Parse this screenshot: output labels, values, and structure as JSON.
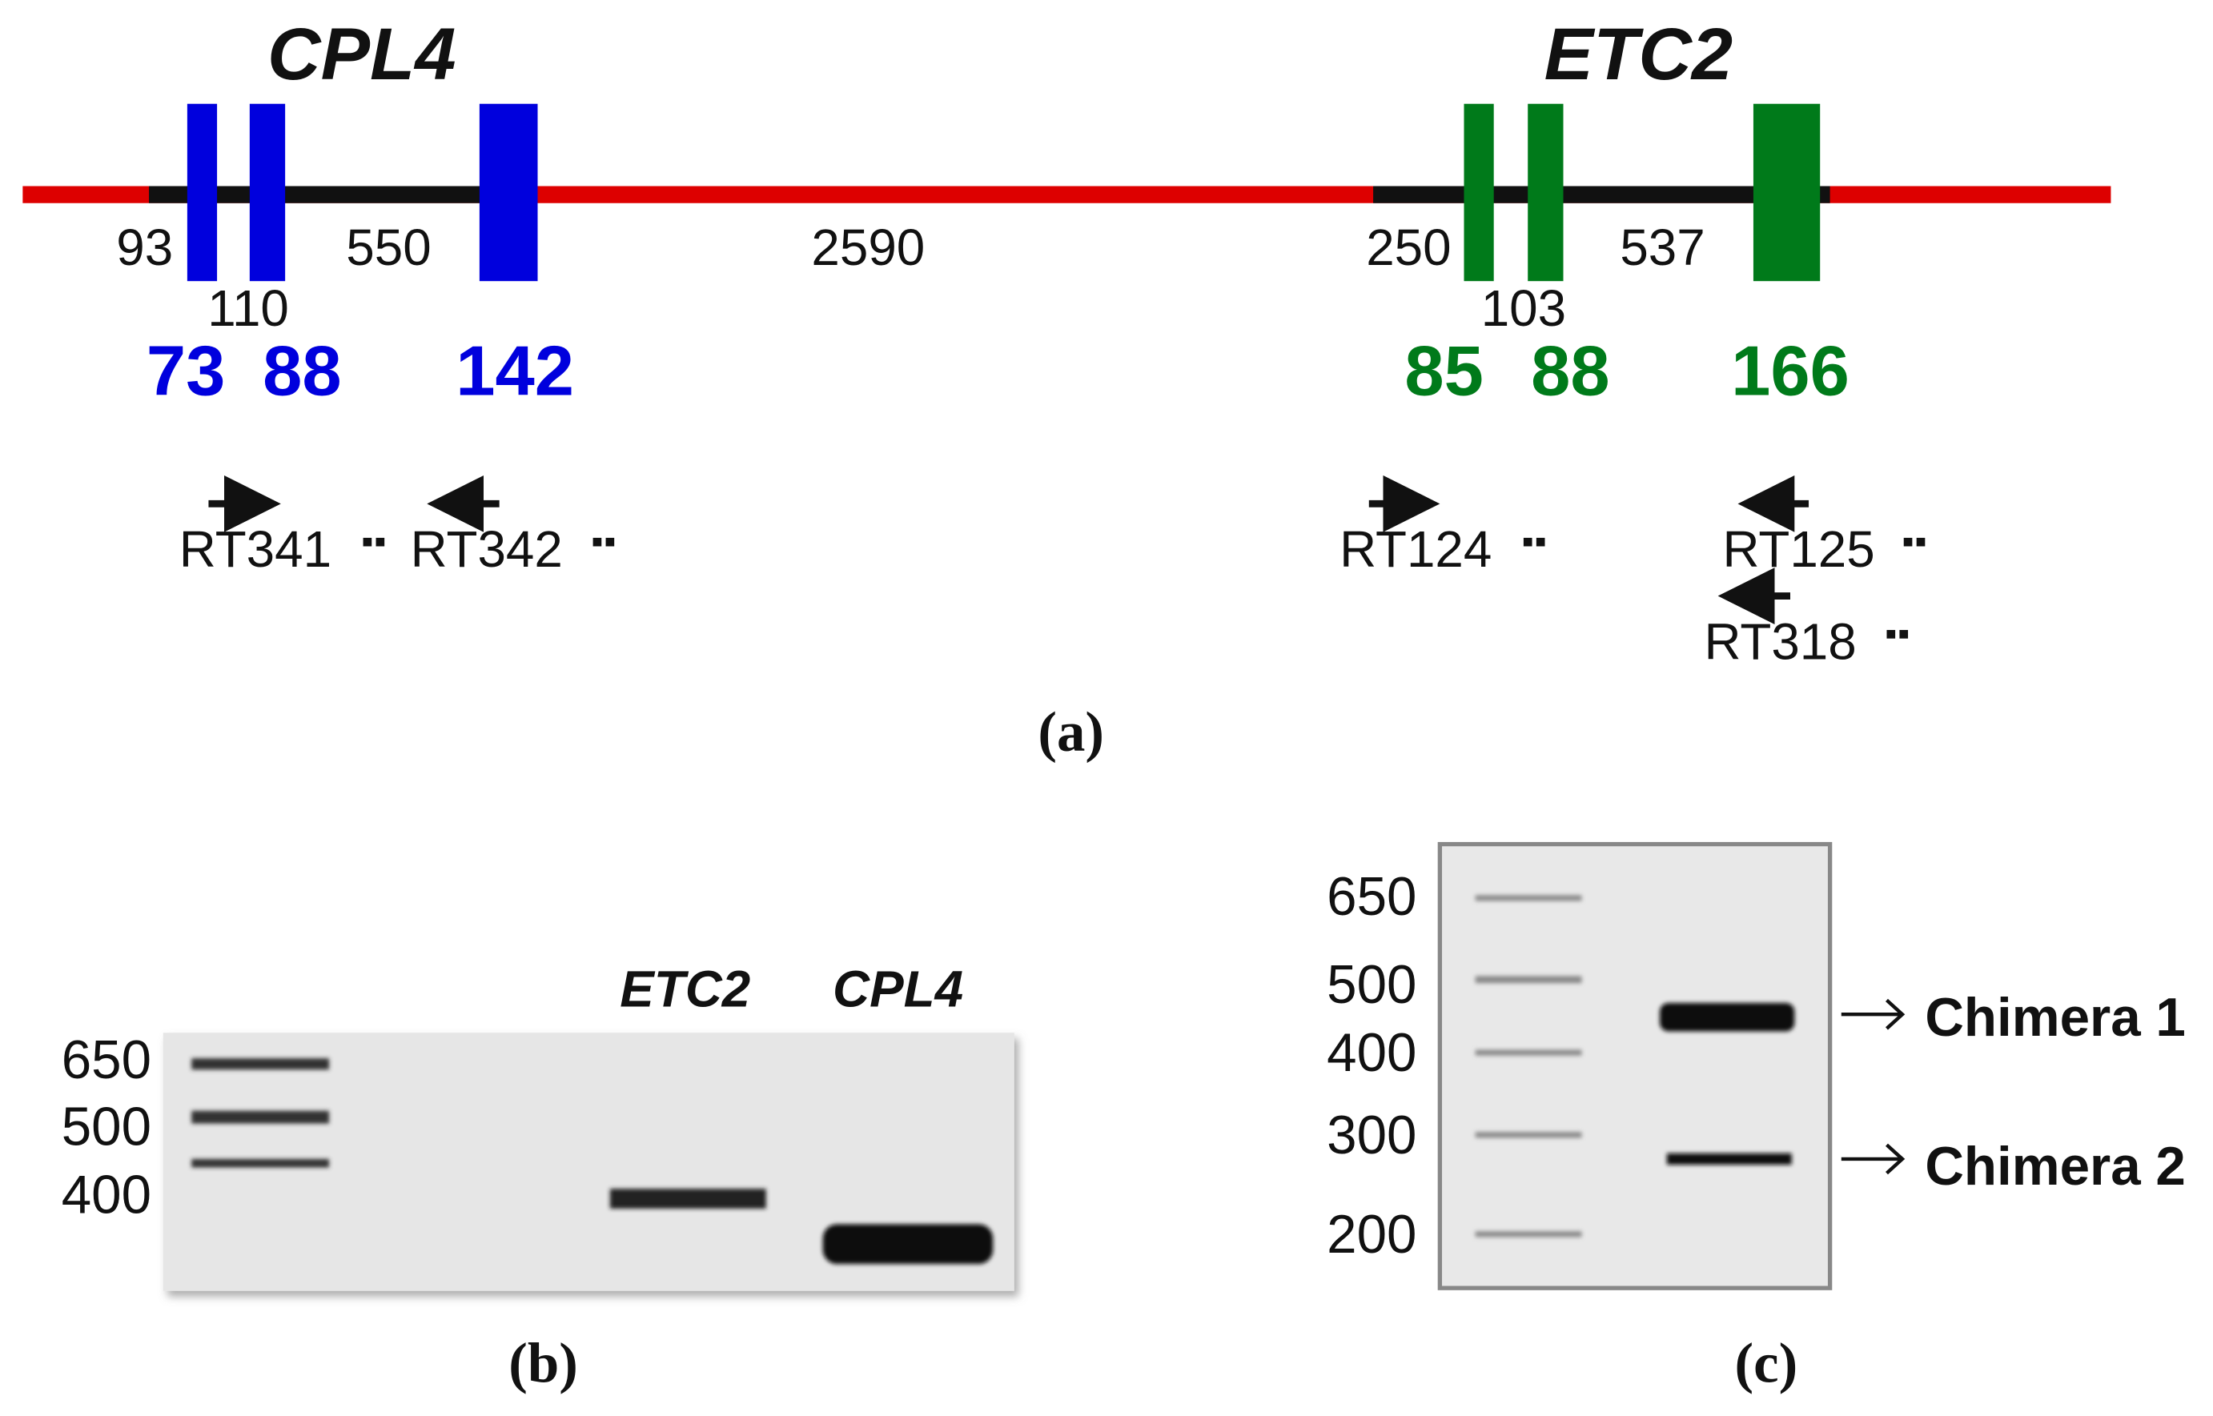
{
  "panel_a": {
    "label": "(a)",
    "genes": [
      {
        "name": "CPL4",
        "exon_lengths": [
          73,
          88,
          142
        ]
      },
      {
        "name": "ETC2",
        "exon_lengths": [
          85,
          88,
          166
        ]
      }
    ],
    "intron_lengths": [
      93,
      110,
      550,
      2590,
      250,
      103,
      537
    ],
    "primers": [
      "RT341",
      "RT342",
      "RT124",
      "RT125",
      "RT318"
    ]
  },
  "panel_b": {
    "label": "(b)",
    "ladder": [
      650,
      500,
      400
    ],
    "lanes": [
      "ETC2",
      "CPL4"
    ]
  },
  "panel_c": {
    "label": "(c)",
    "ladder": [
      650,
      500,
      400,
      300,
      200
    ],
    "bands": [
      "Chimera 1",
      "Chimera 2"
    ]
  }
}
